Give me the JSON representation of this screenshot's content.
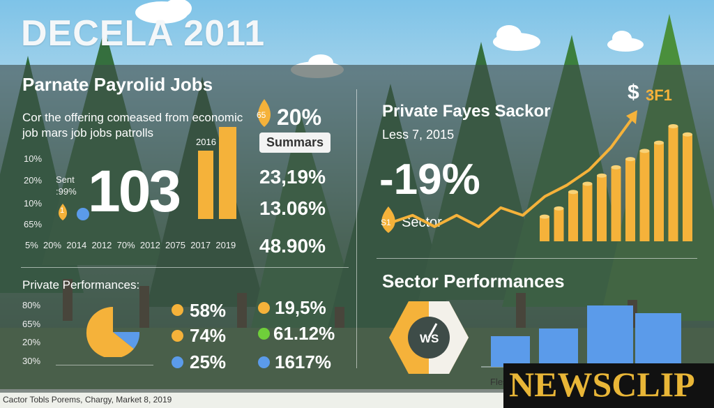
{
  "header": {
    "title": "DECELA 2011"
  },
  "left_top": {
    "heading": "Parnate Payrolid Jobs",
    "desc_line1": "Cor the offering comeased from economic",
    "desc_line2": "job mars job jobs patrolls",
    "y_labels": [
      "10%",
      "20%",
      "10%",
      "65%"
    ],
    "sent_label": "Sent",
    "sent_value": ":99%",
    "marker_value": "1",
    "big_number": "103",
    "bar_label": "2016",
    "x_labels": [
      "5%",
      "20%",
      "2014",
      "2012",
      "70%",
      "2012",
      "2075",
      "2017",
      "2019"
    ]
  },
  "summary": {
    "marker": "65",
    "headline": "20%",
    "badge": "Summars",
    "values": [
      "23,19%",
      "13.06%",
      "48.90%"
    ]
  },
  "right_top": {
    "heading": "Private Fayes Sackor",
    "date": "Less 7, 2015",
    "big_pct": "-19%",
    "sector_marker": "S1",
    "sector_label": "Sector",
    "dollar": "$",
    "peak_label": "3F1"
  },
  "left_bottom": {
    "heading": "Private Performances:",
    "y_labels": [
      "80%",
      "65%",
      "20%",
      "30%"
    ],
    "stats": [
      {
        "color": "#f5b23a",
        "value": "58%"
      },
      {
        "color": "#f5b23a",
        "value": "74%"
      },
      {
        "color": "#5b9bea",
        "value": "25%"
      },
      {
        "color": "#f5b23a",
        "value": "19,5%"
      },
      {
        "color": "#6fcf3a",
        "value": "61.12%"
      },
      {
        "color": "#5b9bea",
        "value": "1617%"
      }
    ]
  },
  "right_bottom": {
    "heading": "Sector Performances",
    "gauge_label": "WS",
    "axis_label": "Fles"
  },
  "chart_data": [
    {
      "type": "line",
      "series": [
        {
          "values": [
            3,
            4,
            2.5,
            4,
            2.5,
            5,
            4,
            6.5,
            8,
            10,
            13,
            17
          ]
        }
      ],
      "grid": false
    },
    {
      "type": "bar",
      "values": [
        3,
        4,
        6,
        7,
        8,
        9,
        10,
        11,
        12,
        14,
        13
      ]
    },
    {
      "type": "bar",
      "values": [
        4,
        5,
        8,
        7
      ]
    }
  ],
  "footer": {
    "caption": "Cactor Tobls Porems, Chargy, Market 8, 2019"
  },
  "watermark": {
    "text": "NEWSCLIP"
  },
  "colors": {
    "accent": "#f5b23a",
    "blue": "#5b9bea",
    "green": "#6fcf3a",
    "panel": "#3e4c48"
  }
}
